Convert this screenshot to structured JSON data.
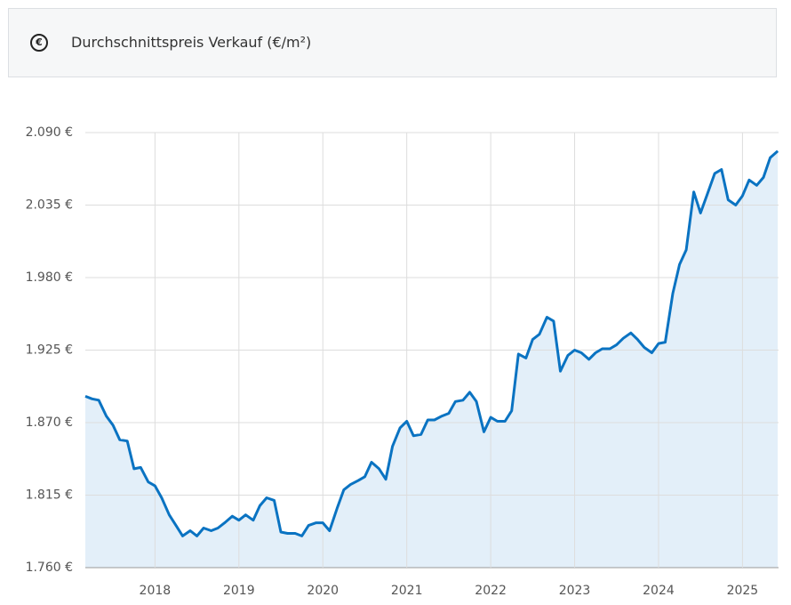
{
  "header": {
    "icon": "€",
    "title": "Durchschnittspreis Verkauf (€/m²)"
  },
  "chart_data": {
    "type": "line",
    "grid": true,
    "x": [
      2017.17,
      2017.25,
      2017.33,
      2017.42,
      2017.5,
      2017.58,
      2017.67,
      2017.75,
      2017.83,
      2017.92,
      2018,
      2018.08,
      2018.17,
      2018.25,
      2018.33,
      2018.42,
      2018.5,
      2018.58,
      2018.67,
      2018.75,
      2018.83,
      2018.92,
      2019,
      2019.08,
      2019.17,
      2019.25,
      2019.33,
      2019.42,
      2019.5,
      2019.58,
      2019.67,
      2019.75,
      2019.83,
      2019.92,
      2020,
      2020.08,
      2020.17,
      2020.25,
      2020.33,
      2020.42,
      2020.5,
      2020.58,
      2020.67,
      2020.75,
      2020.83,
      2020.92,
      2021,
      2021.08,
      2021.17,
      2021.25,
      2021.33,
      2021.42,
      2021.5,
      2021.58,
      2021.67,
      2021.75,
      2021.83,
      2021.92,
      2022,
      2022.08,
      2022.17,
      2022.25,
      2022.33,
      2022.42,
      2022.5,
      2022.58,
      2022.67,
      2022.75,
      2022.83,
      2022.92,
      2023,
      2023.08,
      2023.17,
      2023.25,
      2023.33,
      2023.42,
      2023.5,
      2023.58,
      2023.67,
      2023.75,
      2023.83,
      2023.92,
      2024,
      2024.08,
      2024.17,
      2024.25,
      2024.33,
      2024.42,
      2024.5,
      2024.58,
      2024.67,
      2024.75,
      2024.83,
      2024.92,
      2025,
      2025.08,
      2025.17,
      2025.25,
      2025.33,
      2025.42
    ],
    "series": [
      {
        "color": "#0a73c2",
        "area_color": "#e3eff9",
        "values": [
          1890,
          1888,
          1887,
          1875,
          1868,
          1857,
          1856,
          1835,
          1836,
          1825,
          1822,
          1813,
          1800,
          1792,
          1784,
          1788,
          1784,
          1790,
          1788,
          1790,
          1794,
          1799,
          1796,
          1800,
          1796,
          1807,
          1813,
          1811,
          1787,
          1786,
          1786,
          1784,
          1792,
          1794,
          1794,
          1788,
          1805,
          1819,
          1823,
          1826,
          1829,
          1840,
          1835,
          1827,
          1852,
          1866,
          1871,
          1860,
          1861,
          1872,
          1872,
          1875,
          1877,
          1886,
          1887,
          1893,
          1886,
          1863,
          1874,
          1871,
          1871,
          1879,
          1922,
          1919,
          1933,
          1937,
          1950,
          1947,
          1909,
          1921,
          1925,
          1923,
          1918,
          1923,
          1926,
          1926,
          1929,
          1934,
          1938,
          1933,
          1927,
          1923,
          1930,
          1931,
          1968,
          1990,
          2001,
          2045,
          2029,
          2043,
          2059,
          2062,
          2039,
          2035,
          2042,
          2054,
          2050,
          2056,
          2071,
          2076
        ]
      }
    ],
    "xlim": [
      2017.17,
      2025.43
    ],
    "xticks": [
      2018,
      2019,
      2020,
      2021,
      2022,
      2023,
      2024,
      2025
    ],
    "ylim": [
      1760,
      2090
    ],
    "yticks": [
      {
        "value": 1760,
        "label": "1.760 €"
      },
      {
        "value": 1815,
        "label": "1.815 €"
      },
      {
        "value": 1870,
        "label": "1.870 €"
      },
      {
        "value": 1925,
        "label": "1.925 €"
      },
      {
        "value": 1980,
        "label": "1.980 €"
      },
      {
        "value": 2035,
        "label": "2.035 €"
      },
      {
        "value": 2090,
        "label": "2.090 €"
      }
    ]
  }
}
